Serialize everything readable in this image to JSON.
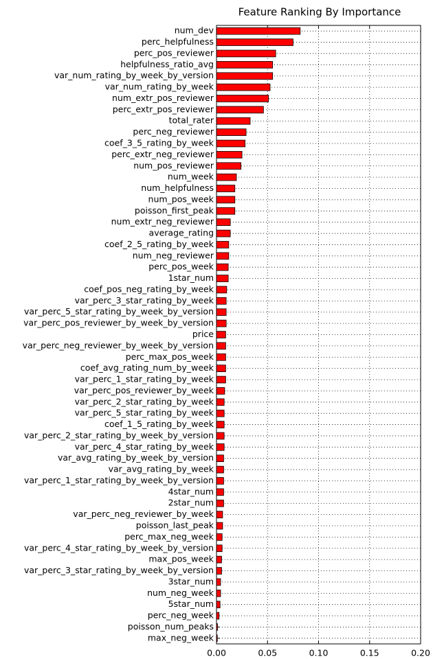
{
  "chart_data": {
    "type": "barh",
    "title": "Feature Ranking By Importance",
    "categories": [
      "num_dev",
      "perc_helpfulness",
      "perc_pos_reviewer",
      "helpfulness_ratio_avg",
      "var_num_rating_by_week_by_version",
      "var_num_rating_by_week",
      "num_extr_pos_reviewer",
      "perc_extr_pos_reviewer",
      "total_rater",
      "perc_neg_reviewer",
      "coef_3_5_rating_by_week",
      "perc_extr_neg_reviewer",
      "num_pos_reviewer",
      "num_week",
      "num_helpfulness",
      "num_pos_week",
      "poisson_first_peak",
      "num_extr_neg_reviewer",
      "average_rating",
      "coef_2_5_rating_by_week",
      "num_neg_reviewer",
      "perc_pos_week",
      "1star_num",
      "coef_pos_neg_rating_by_week",
      "var_perc_3_star_rating_by_week",
      "var_perc_5_star_rating_by_week_by_version",
      "var_perc_pos_reviewer_by_week_by_version",
      "price",
      "var_perc_neg_reviewer_by_week_by_version",
      "perc_max_pos_week",
      "coef_avg_rating_num_by_week",
      "var_perc_1_star_rating_by_week",
      "var_perc_pos_reviewer_by_week",
      "var_perc_2_star_rating_by_week",
      "var_perc_5_star_rating_by_week",
      "coef_1_5_rating_by_week",
      "var_perc_2_star_rating_by_week_by_version",
      "var_perc_4_star_rating_by_week",
      "var_avg_rating_by_week_by_version",
      "var_avg_rating_by_week",
      "var_perc_1_star_rating_by_week_by_version",
      "4star_num",
      "2star_num",
      "var_perc_neg_reviewer_by_week",
      "poisson_last_peak",
      "perc_max_neg_week",
      "var_perc_4_star_rating_by_week_by_version",
      "max_pos_week",
      "var_perc_3_star_rating_by_week_by_version",
      "3star_num",
      "num_neg_week",
      "5star_num",
      "perc_neg_week",
      "poisson_num_peaks",
      "max_neg_week"
    ],
    "values": [
      0.082,
      0.075,
      0.058,
      0.055,
      0.055,
      0.0525,
      0.051,
      0.046,
      0.033,
      0.029,
      0.028,
      0.025,
      0.024,
      0.0195,
      0.018,
      0.018,
      0.018,
      0.0135,
      0.0135,
      0.012,
      0.012,
      0.0115,
      0.0115,
      0.01,
      0.0095,
      0.0095,
      0.0095,
      0.009,
      0.009,
      0.009,
      0.009,
      0.009,
      0.008,
      0.0075,
      0.0075,
      0.0075,
      0.0075,
      0.0075,
      0.007,
      0.007,
      0.007,
      0.007,
      0.007,
      0.006,
      0.006,
      0.0055,
      0.0055,
      0.005,
      0.005,
      0.004,
      0.004,
      0.0035,
      0.0025,
      0.001,
      0.0008
    ],
    "color": "#ff0000",
    "xlim": [
      0,
      0.2
    ],
    "xticks": [
      {
        "value": 0,
        "label": "0.00"
      },
      0.05,
      {
        "value": 0.1,
        "label": "0.10"
      },
      0.15,
      {
        "value": 0.2,
        "label": "0.20"
      }
    ],
    "grid": true
  }
}
